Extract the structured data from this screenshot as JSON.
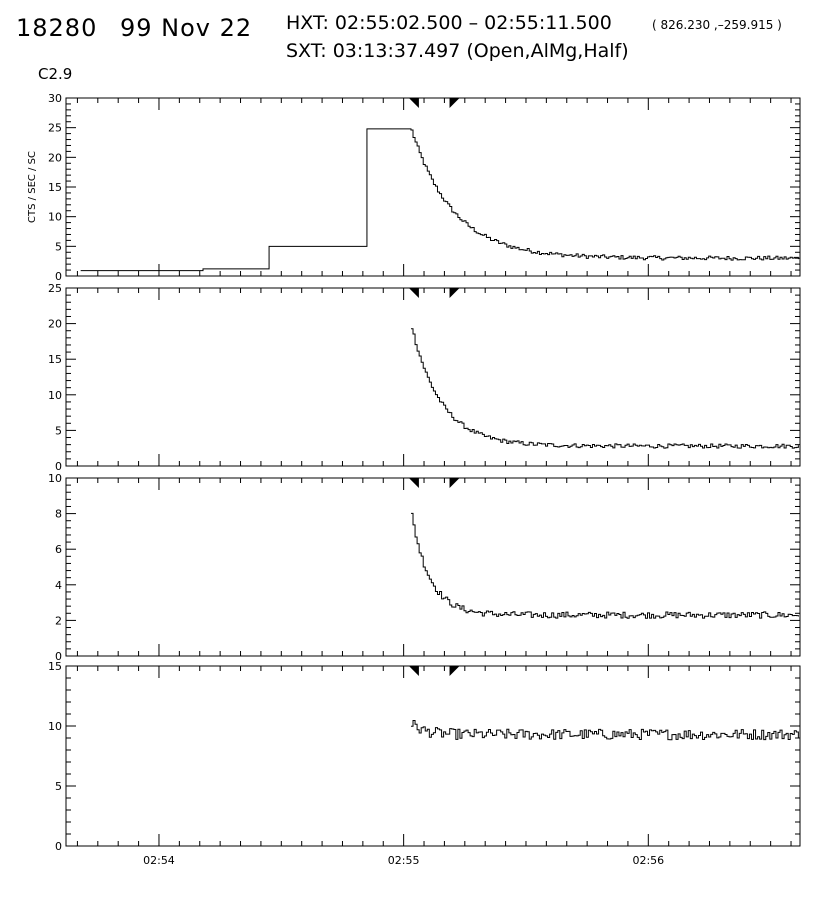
{
  "header": {
    "event_id": "18280",
    "date": "99 Nov 22",
    "hxt": "HXT: 02:55:02.500 – 02:55:11.500",
    "position": "( 826.230 ,–259.915 )",
    "sxt": "SXT: 03:13:37.497 (Open,AlMg,Half)",
    "goes_class": "C2.9"
  },
  "chart_data": {
    "type": "line",
    "step": true,
    "shared_x": {
      "unit": "minutes",
      "xlim": [
        -1.38,
        1.62
      ],
      "ticks": [
        {
          "x": -1,
          "label": "02:54"
        },
        {
          "x": 0,
          "label": "02:55"
        },
        {
          "x": 1,
          "label": "02:56"
        }
      ]
    },
    "markers": [
      0.042,
      0.208
    ],
    "panels": [
      {
        "ylabel": "CTS / SEC / SC",
        "ylim": [
          0,
          30
        ],
        "yticks": [
          0,
          5,
          10,
          15,
          20,
          25,
          30
        ],
        "segments": [
          [
            -1.32,
            0.9
          ],
          [
            -0.82,
            1.2
          ],
          [
            -0.55,
            5.0
          ],
          [
            -0.15,
            24.8
          ],
          [
            0.02,
            24.8
          ]
        ],
        "start": 0.03,
        "end": 1.62,
        "peak": 24.5,
        "base": 3.0,
        "tau": 0.17,
        "noise": 0.35
      },
      {
        "ylabel": "",
        "ylim": [
          0,
          25
        ],
        "yticks": [
          0,
          5,
          10,
          15,
          20,
          25
        ],
        "segments": [],
        "start": 0.03,
        "end": 1.62,
        "peak": 19.5,
        "base": 2.8,
        "tau": 0.12,
        "noise": 0.3
      },
      {
        "ylabel": "",
        "ylim": [
          0,
          10
        ],
        "yticks": [
          0,
          2,
          4,
          6,
          8,
          10
        ],
        "segments": [],
        "start": 0.03,
        "end": 1.62,
        "peak": 7.9,
        "base": 2.3,
        "tau": 0.075,
        "noise": 0.18
      },
      {
        "ylabel": "",
        "ylim": [
          0,
          15
        ],
        "yticks": [
          0,
          5,
          10,
          15
        ],
        "segments": [],
        "start": 0.03,
        "end": 1.62,
        "peak": 10.2,
        "base": 9.3,
        "tau": 0.05,
        "noise": 0.45
      }
    ]
  }
}
